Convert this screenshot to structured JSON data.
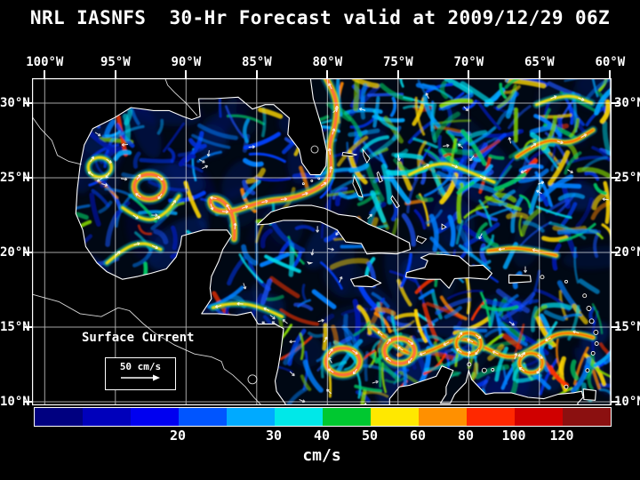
{
  "title": "NRL IASNFS  30-Hr Forecast valid at 2009/12/29 06Z",
  "axes": {
    "lon_labels": [
      "100°W",
      "95°W",
      "90°W",
      "85°W",
      "80°W",
      "75°W",
      "70°W",
      "65°W",
      "60°W"
    ],
    "lat_labels": [
      "30°N",
      "25°N",
      "20°N",
      "15°N",
      "10°N"
    ]
  },
  "legend": {
    "annotation": "Surface Current",
    "scale_label": "50 cm/s"
  },
  "colorbar": {
    "units": "cm/s",
    "segment_colors": [
      "#000080",
      "#0000BB",
      "#0000F0",
      "#0055FF",
      "#00AAFF",
      "#00E8E8",
      "#00C830",
      "#FFE800",
      "#FF9000",
      "#FF2800",
      "#D00000",
      "#8B1010"
    ],
    "tick_labels": [
      "20",
      "30",
      "40",
      "50",
      "60",
      "80",
      "100",
      "120"
    ],
    "tick_boundaries": [
      3,
      5,
      6,
      7,
      8,
      9,
      10,
      11
    ],
    "segments_total": 12
  },
  "chart_data": {
    "type": "heatmap",
    "title": "NRL IASNFS 30-Hr Forecast valid at 2009/12/29 06Z",
    "variable": "Surface Current",
    "units": "cm/s",
    "x_ticks": [
      "100°W",
      "95°W",
      "90°W",
      "85°W",
      "80°W",
      "75°W",
      "70°W",
      "65°W",
      "60°W"
    ],
    "y_ticks": [
      "30°N",
      "25°N",
      "20°N",
      "15°N",
      "10°N"
    ],
    "color_scale_values": [
      20,
      30,
      40,
      50,
      60,
      80,
      100,
      120
    ],
    "reference_vector": "50 cm/s"
  }
}
